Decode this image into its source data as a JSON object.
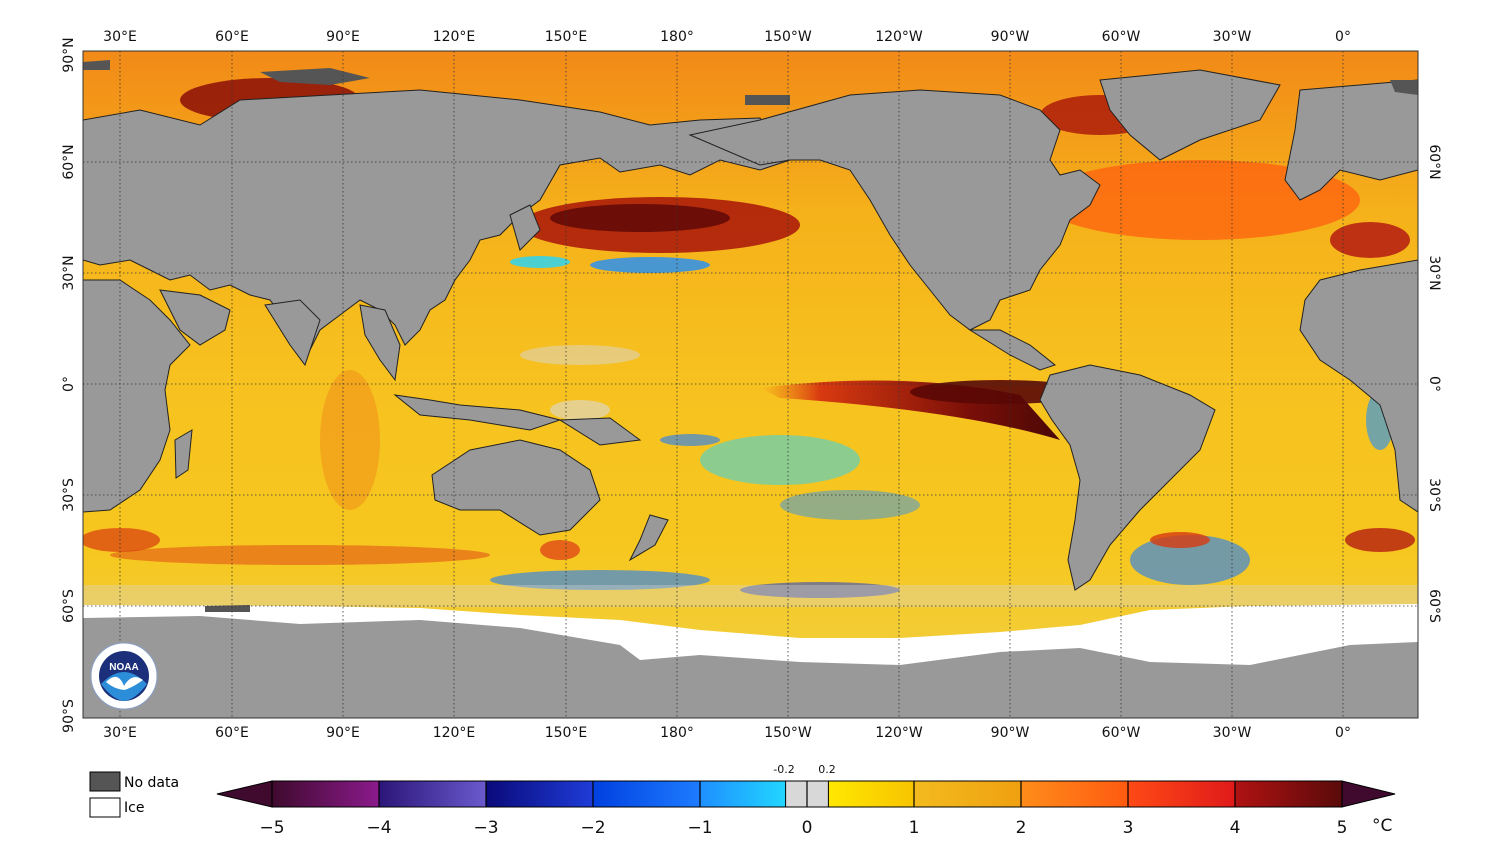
{
  "map": {
    "lon_ticks_top": [
      "30°E",
      "60°E",
      "90°E",
      "120°E",
      "150°E",
      "180°",
      "150°W",
      "120°W",
      "90°W",
      "60°W",
      "30°W",
      "0°"
    ],
    "lon_ticks_bottom": [
      "30°E",
      "60°E",
      "90°E",
      "120°E",
      "150°E",
      "180°",
      "150°W",
      "120°W",
      "90°W",
      "60°W",
      "30°W",
      "0°"
    ],
    "lat_ticks_left": [
      "90°N",
      "60°N",
      "30°N",
      "0°",
      "30°S",
      "60°S",
      "90°S"
    ],
    "lat_ticks_right": [
      "60°N",
      "30°N",
      "0°",
      "30°S",
      "60°S"
    ],
    "logo_text": "NOAA",
    "colors": {
      "land": "#999999",
      "no_data": "#555555",
      "ice": "#ffffff",
      "ocean_base": "#f6c21e"
    }
  },
  "legend": {
    "no_data_label": "No data",
    "ice_label": "Ice"
  },
  "colorbar": {
    "ticks": [
      "−5",
      "−4",
      "−3",
      "−2",
      "−1",
      "0",
      "1",
      "2",
      "3",
      "4",
      "5"
    ],
    "small_ticks": [
      "-0.2",
      "0.2"
    ],
    "unit": "°C",
    "segments": [
      {
        "from": "#3f0a2e",
        "to": "#8b1a8c"
      },
      {
        "from": "#2b1578",
        "to": "#6a5acd"
      },
      {
        "from": "#0a0a7a",
        "to": "#1e3cd8"
      },
      {
        "from": "#0040e0",
        "to": "#1e7cff"
      },
      {
        "from": "#1e8fff",
        "to": "#22d6ff"
      },
      {
        "from": "#d8d8d8",
        "to": "#d8d8d8"
      },
      {
        "from": "#ffe800",
        "to": "#f7c400"
      },
      {
        "from": "#f2bb1e",
        "to": "#f0a010"
      },
      {
        "from": "#ff8c1a",
        "to": "#ff5a10"
      },
      {
        "from": "#ff4a16",
        "to": "#e01a1a"
      },
      {
        "from": "#b01212",
        "to": "#5a0a0a"
      }
    ]
  }
}
